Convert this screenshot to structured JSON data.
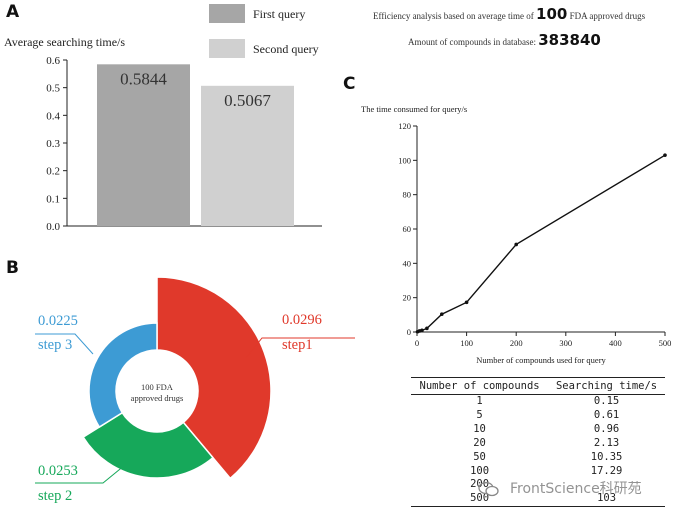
{
  "panels": {
    "a": "A",
    "b": "B",
    "c": "C"
  },
  "panel_a": {
    "efficiency_prefix": "Efficiency analysis based on average time of",
    "efficiency_number": "100",
    "efficiency_suffix": "FDA approved drugs",
    "amount_label": "Amount of compounds in database:",
    "amount_value": "383840"
  },
  "panel_b": {
    "center_line1": "100 FDA",
    "center_line2": "approved drugs"
  },
  "chart_data": [
    {
      "type": "bar",
      "ylabel": "Average searching time/s",
      "series": [
        {
          "name": "First query",
          "value": 0.5844,
          "label": "0.5844",
          "color": "#a6a6a6"
        },
        {
          "name": "Second query",
          "value": 0.5067,
          "label": "0.5067",
          "color": "#d0d0d0"
        }
      ],
      "ylim": [
        0,
        0.6
      ],
      "yticks": [
        "0.0",
        "0.1",
        "0.2",
        "0.3",
        "0.4",
        "0.5",
        "0.6"
      ],
      "legend": "top"
    },
    {
      "type": "pie",
      "slices": [
        {
          "name": "step1",
          "value": 0.0296,
          "label": "0.0296",
          "color": "#e0392b"
        },
        {
          "name": "step 2",
          "value": 0.0253,
          "label": "0.0253",
          "color": "#16a85a"
        },
        {
          "name": "step 3",
          "value": 0.0225,
          "label": "0.0225",
          "color": "#3d9bd4"
        }
      ]
    },
    {
      "type": "line",
      "ylabel": "The time consumed for query/s",
      "xlabel": "Number of compounds used for query",
      "x": [
        1,
        5,
        10,
        20,
        50,
        100,
        200,
        500
      ],
      "y": [
        0.15,
        0.61,
        0.96,
        2.13,
        10.35,
        17.29,
        51,
        103
      ],
      "xlim": [
        0,
        500
      ],
      "ylim": [
        0,
        120
      ],
      "xticks": [
        "0",
        "100",
        "200",
        "300",
        "400",
        "500"
      ],
      "yticks": [
        "0",
        "20",
        "40",
        "60",
        "80",
        "100",
        "120"
      ]
    },
    {
      "type": "table",
      "columns": [
        "Number of compounds",
        "Searching time/s"
      ],
      "rows": [
        [
          "1",
          "0.15"
        ],
        [
          "5",
          "0.61"
        ],
        [
          "10",
          "0.96"
        ],
        [
          "20",
          "2.13"
        ],
        [
          "50",
          "10.35"
        ],
        [
          "100",
          "17.29"
        ],
        [
          "200",
          ""
        ],
        [
          "500",
          "103"
        ]
      ]
    }
  ],
  "watermark": "FrontScience科研苑"
}
